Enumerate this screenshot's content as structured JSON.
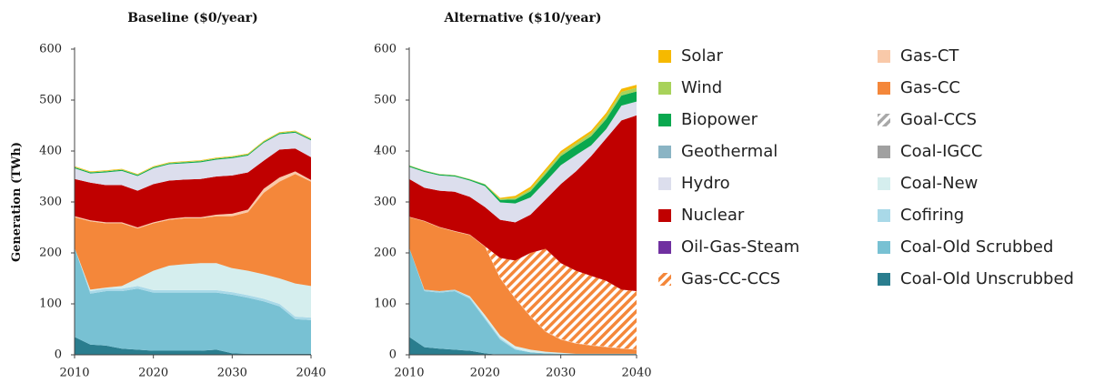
{
  "chart_data": [
    {
      "type": "area",
      "stacked": true,
      "title": "Baseline ($0/year)",
      "ylabel": "Generation (TWh)",
      "x": [
        2010,
        2012,
        2014,
        2016,
        2018,
        2020,
        2022,
        2024,
        2026,
        2028,
        2030,
        2032,
        2034,
        2036,
        2038,
        2040
      ],
      "xlim": [
        2010,
        2040
      ],
      "xticks": [
        2010,
        2020,
        2030,
        2040
      ],
      "ylim": [
        0,
        600
      ],
      "yticks": [
        0,
        100,
        200,
        300,
        400,
        500,
        600
      ],
      "grid": false,
      "series": [
        {
          "name": "Coal-Old Unscrubbed",
          "color": "#2a7d8e",
          "values": [
            35,
            20,
            18,
            12,
            10,
            8,
            8,
            8,
            8,
            10,
            3,
            2,
            2,
            2,
            2,
            2
          ]
        },
        {
          "name": "Coal-Old Scrubbed",
          "color": "#78c1d3",
          "values": [
            175,
            100,
            107,
            113,
            120,
            114,
            114,
            114,
            114,
            112,
            115,
            110,
            103,
            93,
            68,
            66
          ]
        },
        {
          "name": "Cofiring",
          "color": "#a9d9e8",
          "values": [
            0,
            5,
            5,
            5,
            5,
            5,
            5,
            5,
            5,
            5,
            5,
            5,
            5,
            5,
            5,
            5
          ]
        },
        {
          "name": "Coal-New",
          "color": "#d5eeee",
          "values": [
            0,
            3,
            2,
            5,
            15,
            38,
            48,
            51,
            53,
            53,
            47,
            48,
            48,
            50,
            65,
            62
          ]
        },
        {
          "name": "Coal-IGCC",
          "color": "#a0a0a0",
          "values": [
            0,
            0,
            0,
            0,
            0,
            0,
            0,
            0,
            0,
            0,
            0,
            0,
            0,
            0,
            0,
            0
          ]
        },
        {
          "name": "Goal-CCS",
          "color": "#a8a8a8",
          "pattern": "hatch",
          "values": [
            0,
            0,
            0,
            0,
            0,
            0,
            0,
            0,
            0,
            0,
            0,
            0,
            0,
            0,
            0,
            0
          ]
        },
        {
          "name": "Gas-CC",
          "color": "#f4873a",
          "values": [
            60,
            134,
            126,
            123,
            98,
            93,
            90,
            90,
            88,
            92,
            102,
            115,
            160,
            190,
            215,
            205
          ]
        },
        {
          "name": "Gas-CT",
          "color": "#f9c9a9",
          "values": [
            2,
            2,
            2,
            2,
            2,
            2,
            2,
            2,
            2,
            3,
            5,
            5,
            8,
            8,
            5,
            3
          ]
        },
        {
          "name": "Gas-CC-CCS",
          "color": "#f4873a",
          "pattern": "hatch",
          "values": [
            0,
            0,
            0,
            0,
            0,
            0,
            0,
            0,
            0,
            0,
            0,
            0,
            0,
            0,
            0,
            0
          ]
        },
        {
          "name": "Oil-Gas-Steam",
          "color": "#7030a0",
          "values": [
            0,
            0,
            0,
            0,
            0,
            0,
            0,
            0,
            0,
            0,
            0,
            0,
            0,
            0,
            0,
            0
          ]
        },
        {
          "name": "Nuclear",
          "color": "#c00000",
          "values": [
            73,
            74,
            73,
            73,
            72,
            75,
            75,
            74,
            75,
            75,
            75,
            73,
            55,
            55,
            45,
            45
          ]
        },
        {
          "name": "Hydro",
          "color": "#dcdeed",
          "values": [
            21,
            18,
            25,
            28,
            29,
            31,
            32,
            32,
            33,
            33,
            34,
            33,
            35,
            30,
            31,
            33
          ]
        },
        {
          "name": "Geothermal",
          "color": "#8ab4c4",
          "values": [
            0,
            0,
            0,
            0,
            0,
            0,
            0,
            0,
            0,
            0,
            0,
            0,
            0,
            0,
            0,
            0
          ]
        },
        {
          "name": "Biopower",
          "color": "#0aa84f",
          "values": [
            2,
            2,
            2,
            2,
            2,
            2,
            2,
            2,
            2,
            2,
            2,
            2,
            2,
            2,
            2,
            2
          ]
        },
        {
          "name": "Wind",
          "color": "#a8d25a",
          "values": [
            1,
            1,
            1,
            1,
            1,
            1,
            1,
            1,
            1,
            1,
            1,
            1,
            1,
            1,
            1,
            1
          ]
        },
        {
          "name": "Solar",
          "color": "#f6b900",
          "values": [
            1,
            1,
            1,
            1,
            1,
            1,
            1,
            1,
            1,
            1,
            1,
            1,
            1,
            1,
            1,
            1
          ]
        }
      ]
    },
    {
      "type": "area",
      "stacked": true,
      "title": "Alternative ($10/year)",
      "x": [
        2010,
        2012,
        2014,
        2016,
        2018,
        2020,
        2022,
        2024,
        2026,
        2028,
        2030,
        2032,
        2034,
        2036,
        2038,
        2040
      ],
      "xlim": [
        2010,
        2040
      ],
      "xticks": [
        2010,
        2020,
        2030,
        2040
      ],
      "ylim": [
        0,
        600
      ],
      "yticks": [
        0,
        100,
        200,
        300,
        400,
        500,
        600
      ],
      "grid": false,
      "series": [
        {
          "name": "Coal-Old Unscrubbed",
          "color": "#2a7d8e",
          "values": [
            35,
            15,
            12,
            10,
            8,
            3,
            0,
            0,
            0,
            0,
            0,
            0,
            0,
            0,
            0,
            0
          ]
        },
        {
          "name": "Coal-Old Scrubbed",
          "color": "#78c1d3",
          "values": [
            175,
            110,
            110,
            115,
            102,
            67,
            30,
            10,
            5,
            3,
            2,
            2,
            2,
            2,
            2,
            2
          ]
        },
        {
          "name": "Cofiring",
          "color": "#a9d9e8",
          "values": [
            0,
            3,
            3,
            3,
            3,
            3,
            3,
            2,
            0,
            0,
            0,
            0,
            0,
            0,
            0,
            0
          ]
        },
        {
          "name": "Coal-New",
          "color": "#d5eeee",
          "values": [
            0,
            0,
            0,
            0,
            2,
            5,
            5,
            5,
            5,
            3,
            2,
            0,
            0,
            0,
            0,
            0
          ]
        },
        {
          "name": "Coal-IGCC",
          "color": "#a0a0a0",
          "values": [
            0,
            0,
            0,
            0,
            0,
            0,
            0,
            0,
            0,
            0,
            0,
            0,
            0,
            0,
            0,
            0
          ]
        },
        {
          "name": "Goal-CCS",
          "color": "#a8a8a8",
          "pattern": "hatch",
          "values": [
            0,
            0,
            0,
            0,
            0,
            0,
            0,
            0,
            0,
            0,
            0,
            0,
            0,
            0,
            0,
            0
          ]
        },
        {
          "name": "Gas-CC",
          "color": "#f4873a",
          "values": [
            60,
            134,
            125,
            114,
            120,
            134,
            112,
            93,
            65,
            39,
            26,
            20,
            16,
            13,
            10,
            8
          ]
        },
        {
          "name": "Gas-CT",
          "color": "#f9c9a9",
          "values": [
            1,
            1,
            1,
            1,
            1,
            1,
            1,
            1,
            1,
            1,
            1,
            1,
            1,
            1,
            1,
            1
          ]
        },
        {
          "name": "Gas-CC-CCS",
          "color": "#f4873a",
          "pattern": "hatch",
          "values": [
            0,
            0,
            0,
            0,
            0,
            0,
            39,
            74,
            124,
            162,
            149,
            142,
            136,
            129,
            115,
            114
          ]
        },
        {
          "name": "Oil-Gas-Steam",
          "color": "#7030a0",
          "values": [
            0,
            0,
            0,
            0,
            0,
            0,
            0,
            0,
            0,
            0,
            0,
            0,
            0,
            0,
            0,
            0
          ]
        },
        {
          "name": "Nuclear",
          "color": "#c00000",
          "values": [
            74,
            65,
            71,
            77,
            74,
            77,
            75,
            75,
            75,
            97,
            155,
            195,
            235,
            280,
            332,
            345
          ]
        },
        {
          "name": "Hydro",
          "color": "#dcdeed",
          "values": [
            24,
            31,
            30,
            30,
            32,
            41,
            34,
            37,
            34,
            35,
            37,
            32,
            21,
            18,
            29,
            27
          ]
        },
        {
          "name": "Geothermal",
          "color": "#8ab4c4",
          "values": [
            0,
            0,
            0,
            0,
            0,
            0,
            0,
            0,
            0,
            0,
            0,
            0,
            0,
            0,
            0,
            0
          ]
        },
        {
          "name": "Biopower",
          "color": "#0aa84f",
          "values": [
            2,
            2,
            2,
            2,
            2,
            3,
            5,
            8,
            12,
            15,
            18,
            18,
            18,
            20,
            20,
            20
          ]
        },
        {
          "name": "Wind",
          "color": "#a8d25a",
          "values": [
            1,
            1,
            1,
            1,
            1,
            1,
            2,
            3,
            4,
            5,
            5,
            5,
            6,
            6,
            7,
            7
          ]
        },
        {
          "name": "Solar",
          "color": "#f6b900",
          "values": [
            0,
            0,
            0,
            0,
            0,
            0,
            2,
            4,
            5,
            5,
            5,
            5,
            5,
            6,
            6,
            6
          ]
        }
      ]
    }
  ]
}
